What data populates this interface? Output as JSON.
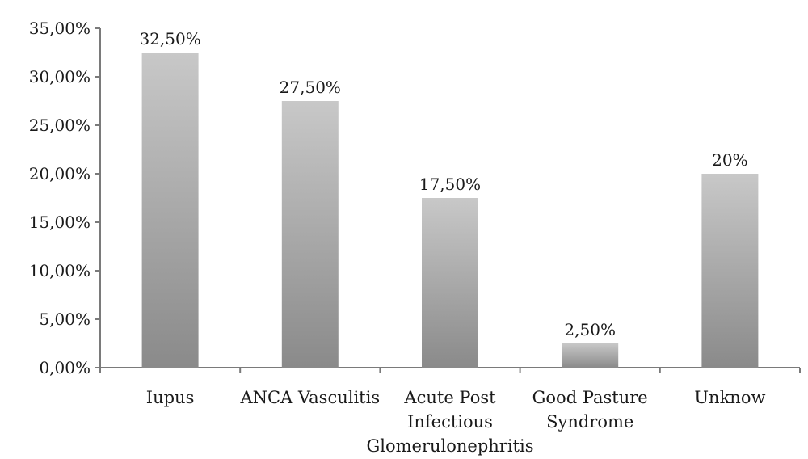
{
  "chart_data": {
    "type": "bar",
    "categories": [
      [
        "Iupus"
      ],
      [
        "ANCA Vasculitis"
      ],
      [
        "Acute Post",
        "Infectious",
        "Glomerulonephritis"
      ],
      [
        "Good Pasture",
        "Syndrome"
      ],
      [
        "Unknow"
      ]
    ],
    "values": [
      32.5,
      27.5,
      17.5,
      2.5,
      20
    ],
    "data_labels": [
      "32,50%",
      "27,50%",
      "17,50%",
      "2,50%",
      "20%"
    ],
    "y_ticks": [
      0,
      5,
      10,
      15,
      20,
      25,
      30,
      35
    ],
    "y_tick_labels": [
      "0,00%",
      "5,00%",
      "10,00%",
      "15,00%",
      "20,00%",
      "25,00%",
      "30,00%",
      "35,00%"
    ],
    "ylim": [
      0,
      35
    ],
    "grid": false,
    "legend": "none",
    "title": "",
    "xlabel": "",
    "ylabel": "",
    "colors": {
      "bar_gradient_top": "#c8c8c8",
      "bar_gradient_bottom": "#8a8a8a",
      "axis": "#7a7a7a"
    }
  }
}
